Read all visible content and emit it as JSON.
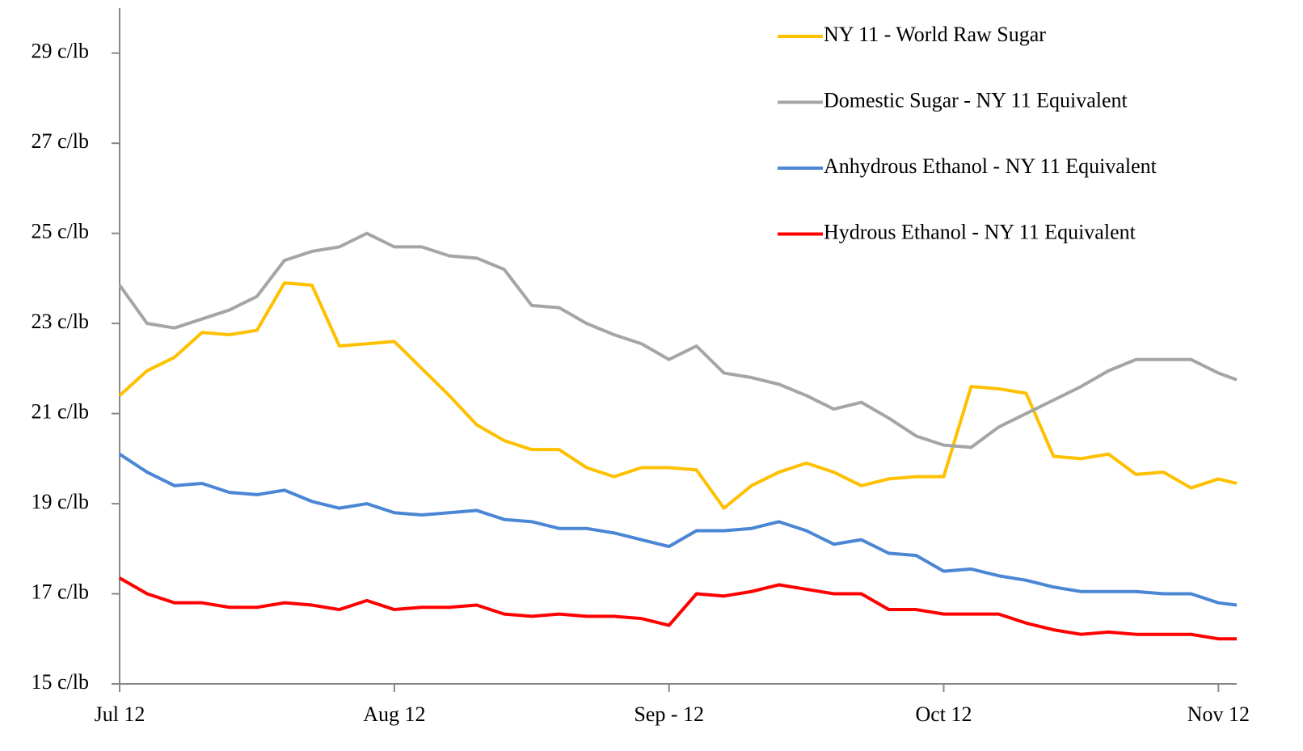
{
  "chart_data": {
    "type": "line",
    "x": [
      0,
      3,
      6,
      9,
      12,
      15,
      18,
      21,
      24,
      27,
      30,
      33,
      36,
      39,
      42,
      45,
      48,
      51,
      54,
      57,
      60,
      63,
      66,
      69,
      72,
      75,
      78,
      81,
      84,
      87,
      90,
      93,
      96,
      99,
      102,
      105,
      108,
      111,
      114,
      117,
      120,
      122
    ],
    "xlim": [
      0,
      122
    ],
    "xticks": [
      {
        "value": 0,
        "label": "Jul 12"
      },
      {
        "value": 30,
        "label": "Aug 12"
      },
      {
        "value": 60,
        "label": "Sep - 12"
      },
      {
        "value": 90,
        "label": "Oct 12"
      },
      {
        "value": 120,
        "label": "Nov 12"
      }
    ],
    "ylim": [
      15,
      30
    ],
    "yticks": [
      {
        "value": 15,
        "label": "15 c/lb"
      },
      {
        "value": 17,
        "label": "17 c/lb"
      },
      {
        "value": 19,
        "label": "19 c/lb"
      },
      {
        "value": 21,
        "label": "21 c/lb"
      },
      {
        "value": 23,
        "label": "23 c/lb"
      },
      {
        "value": 25,
        "label": "25 c/lb"
      },
      {
        "value": 27,
        "label": "27 c/lb"
      },
      {
        "value": 29,
        "label": "29 c/lb"
      }
    ],
    "grid": false,
    "legend": "upper right",
    "series": [
      {
        "name": "NY 11 - World Raw Sugar",
        "color": "#FFC000",
        "values": [
          21.4,
          21.95,
          22.25,
          22.8,
          22.75,
          22.85,
          23.9,
          23.85,
          22.5,
          22.55,
          22.6,
          22.0,
          21.4,
          20.75,
          20.4,
          20.2,
          20.2,
          19.8,
          19.6,
          19.8,
          19.8,
          19.75,
          18.9,
          19.4,
          19.7,
          19.9,
          19.7,
          19.4,
          19.55,
          19.6,
          19.6,
          21.6,
          21.55,
          21.45,
          20.05,
          20.0,
          20.1,
          19.65,
          19.7,
          19.35,
          19.55,
          19.45
        ]
      },
      {
        "name": "Domestic Sugar - NY 11 Equivalent",
        "color": "#A5A5A5",
        "values": [
          23.85,
          23.0,
          22.9,
          23.1,
          23.3,
          23.6,
          24.4,
          24.6,
          24.7,
          25.0,
          24.7,
          24.7,
          24.5,
          24.45,
          24.2,
          23.4,
          23.35,
          23.0,
          22.75,
          22.55,
          22.2,
          22.5,
          21.9,
          21.8,
          21.65,
          21.4,
          21.1,
          21.25,
          20.9,
          20.5,
          20.3,
          20.25,
          20.7,
          21.0,
          21.3,
          21.6,
          21.95,
          22.2,
          22.2,
          22.2,
          21.9,
          21.75
        ]
      },
      {
        "name": "Anhydrous Ethanol - NY 11 Equivalent",
        "color": "#4A86D4",
        "values": [
          20.1,
          19.7,
          19.4,
          19.45,
          19.25,
          19.2,
          19.3,
          19.05,
          18.9,
          19.0,
          18.8,
          18.75,
          18.8,
          18.85,
          18.65,
          18.6,
          18.45,
          18.45,
          18.35,
          18.2,
          18.05,
          18.4,
          18.4,
          18.45,
          18.6,
          18.4,
          18.1,
          18.2,
          17.9,
          17.85,
          17.5,
          17.55,
          17.4,
          17.3,
          17.15,
          17.05,
          17.05,
          17.05,
          17.0,
          17.0,
          16.8,
          16.75
        ]
      },
      {
        "name": "Hydrous Ethanol - NY 11 Equivalent",
        "color": "#FF0000",
        "values": [
          17.35,
          17.0,
          16.8,
          16.8,
          16.7,
          16.7,
          16.8,
          16.75,
          16.65,
          16.85,
          16.65,
          16.7,
          16.7,
          16.75,
          16.55,
          16.5,
          16.55,
          16.5,
          16.5,
          16.45,
          16.3,
          17.0,
          16.95,
          17.05,
          17.2,
          17.1,
          17.0,
          17.0,
          16.65,
          16.65,
          16.55,
          16.55,
          16.55,
          16.35,
          16.2,
          16.1,
          16.15,
          16.1,
          16.1,
          16.1,
          16.0,
          16.0
        ]
      }
    ]
  }
}
